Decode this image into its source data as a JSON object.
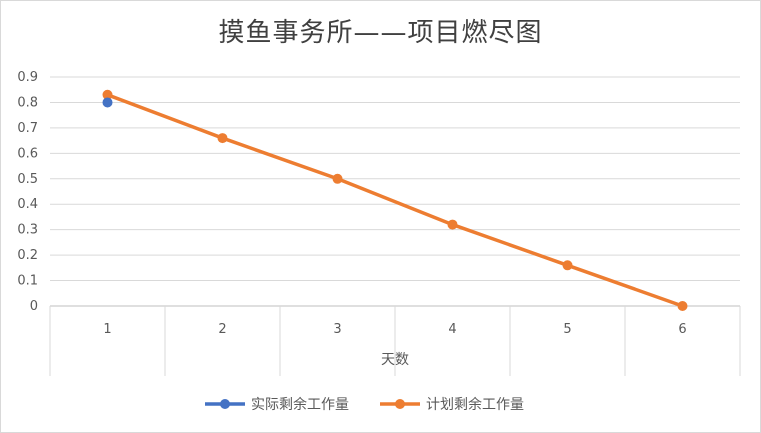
{
  "chart_data": {
    "type": "line",
    "title": "摸鱼事务所——项目燃尽图",
    "xlabel": "天数",
    "ylabel": "",
    "categories": [
      "1",
      "2",
      "3",
      "4",
      "5",
      "6"
    ],
    "yticks": [
      "0",
      "0.1",
      "0.2",
      "0.3",
      "0.4",
      "0.5",
      "0.6",
      "0.7",
      "0.8",
      "0.9"
    ],
    "ylim": [
      0,
      0.9
    ],
    "grid": true,
    "legend_position": "bottom",
    "series": [
      {
        "name": "实际剩余工作量",
        "color": "#4472c4",
        "values": [
          0.8,
          null,
          null,
          null,
          null,
          null
        ]
      },
      {
        "name": "计划剩余工作量",
        "color": "#ed7d31",
        "values": [
          0.83,
          0.66,
          0.5,
          0.32,
          0.16,
          0
        ]
      }
    ]
  }
}
